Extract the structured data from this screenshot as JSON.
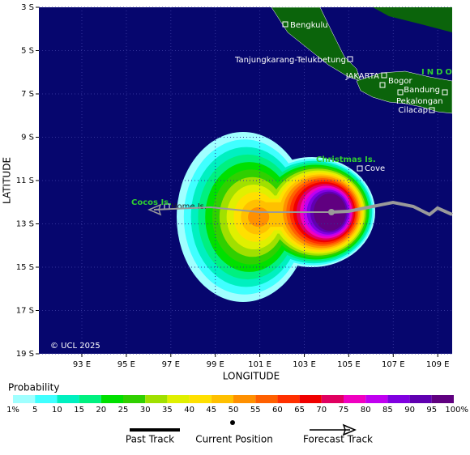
{
  "map": {
    "lat_labels": [
      "3 S",
      "5 S",
      "7 S",
      "9 S",
      "11 S",
      "13 S",
      "15 S",
      "17 S",
      "19 S"
    ],
    "lon_labels": [
      "93 E",
      "95 E",
      "97 E",
      "99 E",
      "101 E",
      "103 E",
      "105 E",
      "107 E",
      "109 E"
    ],
    "x_axis_title": "LONGITUDE",
    "y_axis_title": "LATITUDE",
    "copyright": "© UCL 2025",
    "places": [
      "Bengkulu",
      "Tanjungkarang-Telukbetung",
      "JAKARTA",
      "Bogor",
      "Bandung",
      "Pekalongan",
      "Cilacap",
      "Cove",
      "Home Is."
    ],
    "regions": [
      "INDO",
      "Christmas Is.",
      "Cocos Is."
    ]
  },
  "legend": {
    "title": "Probability",
    "labels": [
      "1%",
      "5",
      "10",
      "15",
      "20",
      "25",
      "30",
      "35",
      "40",
      "45",
      "50",
      "55",
      "60",
      "65",
      "70",
      "75",
      "80",
      "85",
      "90",
      "95",
      "100%"
    ],
    "colors": [
      "#a0ffff",
      "#40ffff",
      "#00f0c0",
      "#00f080",
      "#00e000",
      "#30d000",
      "#a0e000",
      "#e0f000",
      "#ffe000",
      "#ffc000",
      "#ff9000",
      "#ff6000",
      "#ff3000",
      "#f00000",
      "#e00060",
      "#f000c0",
      "#c000f0",
      "#8000e0",
      "#6000b0",
      "#600080"
    ]
  },
  "key": {
    "past": "Past Track",
    "current": "Current Position",
    "forecast": "Forecast Track"
  }
}
